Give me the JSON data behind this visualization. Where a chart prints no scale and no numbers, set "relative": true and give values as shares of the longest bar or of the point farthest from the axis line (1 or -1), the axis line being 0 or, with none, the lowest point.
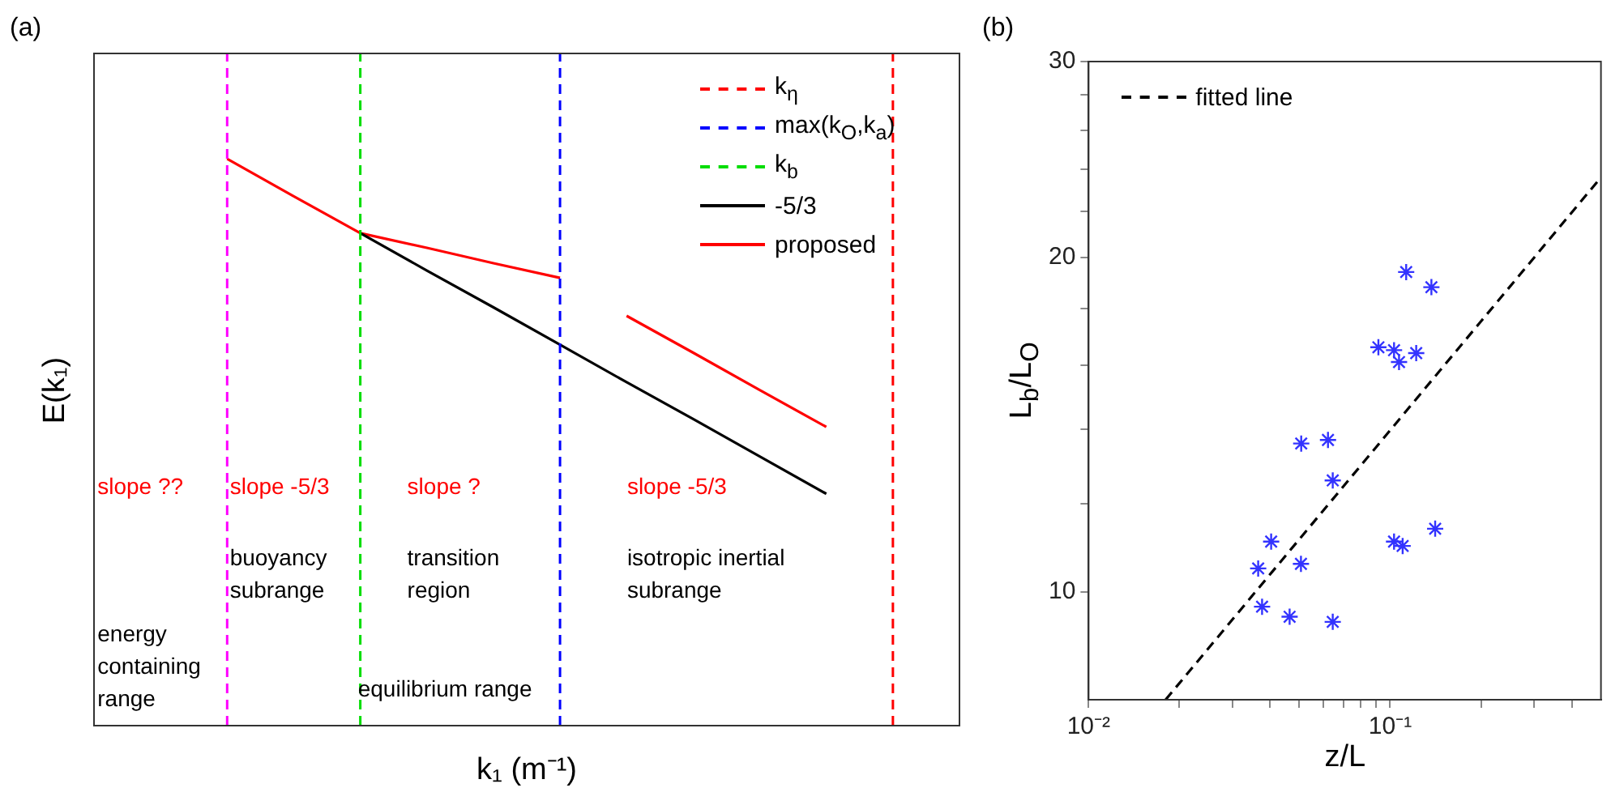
{
  "chart_data": [
    {
      "type": "line",
      "relative": true,
      "xlabel": "k₁ (m⁻¹)",
      "ylabel": "E(k₁)",
      "tick_labels": false,
      "legend": "top right",
      "categories": [
        null,
        null,
        null,
        null,
        null,
        null,
        null,
        null,
        null,
        null,
        null,
        null,
        null,
        null
      ],
      "series": [
        {
          "name": "-5/3",
          "color": "#000000",
          "values": [
            null,
            null,
            null,
            null,
            0.869,
            0.803,
            0.738,
            0.672,
            0.606,
            0.541,
            0.475,
            0.409,
            null,
            null
          ]
        },
        {
          "name": "proposed",
          "color": "#ff0000",
          "values": [
            null,
            null,
            1.0,
            0.934,
            0.869,
            0.843,
            0.816,
            0.79,
            null,
            null,
            null,
            null,
            null,
            null
          ]
        },
        {
          "color": "#ff0000",
          "values": [
            null,
            null,
            null,
            null,
            null,
            null,
            null,
            null,
            0.723,
            0.658,
            0.592,
            0.527,
            null,
            null
          ]
        }
      ],
      "ref_lines": [
        {
          "axis": "x",
          "label": "k$_{η}$",
          "color": "#ff0000",
          "line_style": "dashed"
        },
        {
          "axis": "x",
          "label": "max(k$_{O}$,k$_{a}$)",
          "color": "#0000ff",
          "line_style": "dashed"
        },
        {
          "axis": "x",
          "label": "k$_{b}$",
          "color": "#00dd00",
          "line_style": "dashed"
        },
        {
          "axis": "x",
          "color": "#ff00ff",
          "line_style": "dashed"
        }
      ],
      "annotations": [
        "(a)",
        "slope ??",
        "slope -5/3",
        "slope ?",
        "slope -5/3",
        "buoyancy subrange",
        "transition region",
        "isotropic inertial subrange",
        "energy containing range",
        "equilibrium range"
      ]
    },
    {
      "type": "scatter",
      "xlabel": "z/L",
      "ylabel": "L$_{b}$/L$_{O}$",
      "log": "xy",
      "legend": "top left",
      "xlim": [
        0.01,
        0.5
      ],
      "ylim": [
        8,
        30
      ],
      "xticks": [
        {
          "value": 0.01,
          "label": "10⁻²"
        },
        {
          "value": 0.02,
          "label": null
        },
        {
          "value": 0.03,
          "label": null
        },
        {
          "value": 0.04,
          "label": null
        },
        {
          "value": 0.05,
          "label": null
        },
        {
          "value": 0.06,
          "label": null
        },
        {
          "value": 0.07,
          "label": null
        },
        {
          "value": 0.08,
          "label": null
        },
        {
          "value": 0.09,
          "label": null
        },
        {
          "value": 0.1,
          "label": "10⁻¹"
        },
        {
          "value": 0.2,
          "label": null
        },
        {
          "value": 0.3,
          "label": null
        },
        {
          "value": 0.4,
          "label": null
        }
      ],
      "yticks": [
        10,
        {
          "value": 12,
          "label": null
        },
        {
          "value": 14,
          "label": null
        },
        {
          "value": 16,
          "label": null
        },
        {
          "value": 18,
          "label": null
        },
        20,
        {
          "value": 22,
          "label": null
        },
        {
          "value": 24,
          "label": null
        },
        {
          "value": 26,
          "label": null
        },
        {
          "value": 28,
          "label": null
        },
        30
      ],
      "series": [
        {
          "color": "#3333ff",
          "marker": "cross",
          "x": [
            0.113,
            0.137,
            0.0914,
            0.103,
            0.107,
            0.122,
            0.0507,
            0.0622,
            0.0645,
            0.141,
            0.103,
            0.11,
            0.0403,
            0.0365,
            0.0506,
            0.0376,
            0.0464,
            0.0645
          ],
          "values": [
            19.4,
            18.8,
            16.6,
            16.5,
            16.1,
            16.4,
            13.6,
            13.7,
            12.6,
            11.4,
            11.1,
            11.0,
            11.1,
            10.5,
            10.6,
            9.7,
            9.5,
            9.4
          ]
        },
        {
          "type": "line",
          "name": "fitted line",
          "color": "#000000",
          "line_style": "dashed",
          "x": [
            0.018,
            0.5
          ],
          "values": [
            8,
            23.6
          ]
        }
      ],
      "annotations": [
        "(b)"
      ]
    }
  ]
}
